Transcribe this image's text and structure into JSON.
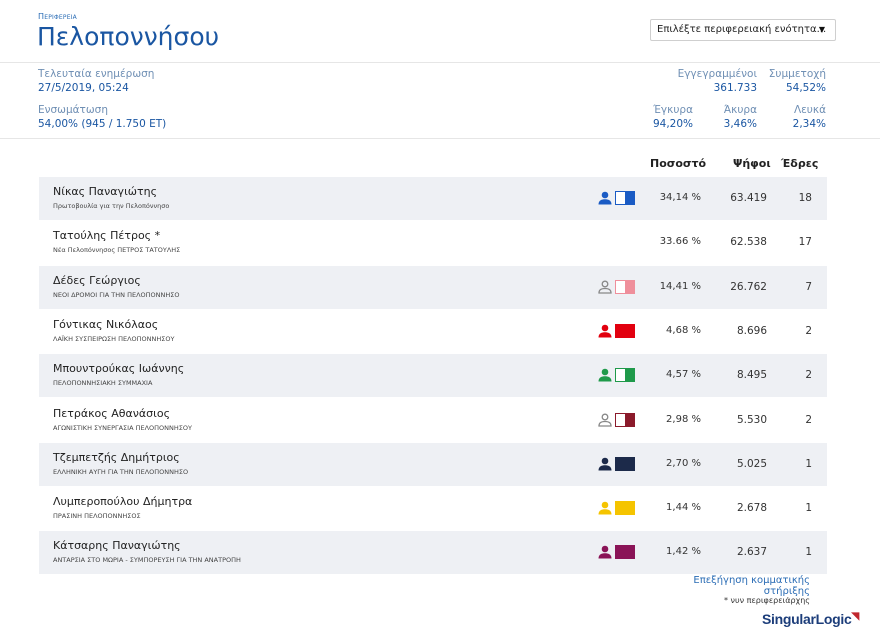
{
  "header": {
    "kicker": "Περιφερεια",
    "title": "Πελοποννήσου",
    "select_value": "Επιλέξτε περιφερειακή ενότητα...",
    "select_caret": "▼"
  },
  "stats": {
    "last_update_label": "Τελευταία ενημέρωση",
    "last_update_value": "27/5/2019, 05:24",
    "integration_label": "Ενσωμάτωση",
    "integration_value": "54,00% (945 / 1.750 ΕΤ)",
    "registered_label": "Εγγεγραμμένοι",
    "registered_value": "361.733",
    "turnout_label": "Συμμετοχή",
    "turnout_value": "54,52%",
    "valid_label": "Έγκυρα",
    "valid_value": "94,20%",
    "invalid_label": "Άκυρα",
    "invalid_value": "3,46%",
    "blank_label": "Λευκά",
    "blank_value": "2,34%"
  },
  "table": {
    "col_percent": "Ποσοστό",
    "col_votes": "Ψήφοι",
    "col_seats": "Έδρες",
    "rows": [
      {
        "name": "Νίκας Παναγιώτης",
        "party": "Πρωτοβουλία για την Πελοπόννησο",
        "percent": "34,14 %",
        "votes": "63.419",
        "seats": "18",
        "color": "#1a5bc4",
        "swatch_fill": 0.5,
        "person_icon": "person-filled-icon"
      },
      {
        "name": "Τατούλης Πέτρος *",
        "party": "Νέα Πελοπόννησος ΠΕΤΡΟΣ ΤΑΤΟΥΛΗΣ",
        "percent": "33.66 %",
        "votes": "62.538",
        "seats": "17",
        "color": "",
        "swatch_fill": 0,
        "person_icon": ""
      },
      {
        "name": "Δέδες Γεώργιος",
        "party": "ΝΕΟΙ ΔΡΟΜΟΙ ΓΙΑ ΤΗΝ ΠΕΛΟΠΟΝΝΗΣΟ",
        "percent": "14,41 %",
        "votes": "26.762",
        "seats": "7",
        "color": "#ef8f9b",
        "swatch_fill": 0.5,
        "person_icon": "person-outline-icon"
      },
      {
        "name": "Γόντικας Νικόλαος",
        "party": "ΛΑΪΚΗ ΣΥΣΠΕΙΡΩΣΗ ΠΕΛΟΠΟΝΝΗΣΟΥ",
        "percent": "4,68 %",
        "votes": "8.696",
        "seats": "2",
        "color": "#e2000f",
        "swatch_fill": 1,
        "person_icon": "person-filled-icon"
      },
      {
        "name": "Μπουντρούκας Ιωάννης",
        "party": "ΠΕΛΟΠΟΝΝΗΣΙΑΚΗ ΣΥΜΜΑΧΙΑ",
        "percent": "4,57 %",
        "votes": "8.495",
        "seats": "2",
        "color": "#1f9a4a",
        "swatch_fill": 0.5,
        "person_icon": "person-filled-icon"
      },
      {
        "name": "Πετράκος Αθανάσιος",
        "party": "ΑΓΩΝΙΣΤΙΚΗ ΣΥΝΕΡΓΑΣΙΑ ΠΕΛΟΠΟΝΝΗΣΟΥ",
        "percent": "2,98 %",
        "votes": "5.530",
        "seats": "2",
        "color": "#8b1a2b",
        "swatch_fill": 0.5,
        "person_icon": "person-outline-icon"
      },
      {
        "name": "Τζεμπετζής Δημήτριος",
        "party": "ΕΛΛΗΝΙΚΗ ΑΥΓΗ ΓΙΑ ΤΗΝ ΠΕΛΟΠΟΝΝΗΣΟ",
        "percent": "2,70 %",
        "votes": "5.025",
        "seats": "1",
        "color": "#1c2a4a",
        "swatch_fill": 1,
        "person_icon": "person-filled-icon"
      },
      {
        "name": "Λυμπεροπούλου Δήμητρα",
        "party": "ΠΡΑΣΙΝΗ ΠΕΛΟΠΟΝΝΗΣΟΣ",
        "percent": "1,44 %",
        "votes": "2.678",
        "seats": "1",
        "color": "#f5c400",
        "swatch_fill": 1,
        "person_icon": "person-filled-icon"
      },
      {
        "name": "Κάτσαρης Παναγιώτης",
        "party": "ΑΝΤΑΡΣΙΑ ΣΤΟ ΜΩΡΙΑ - ΣΥΜΠΟΡΕΥΣΗ ΓΙΑ ΤΗΝ ΑΝΑΤΡΟΠΗ",
        "percent": "1,42 %",
        "votes": "2.637",
        "seats": "1",
        "color": "#8a1457",
        "swatch_fill": 1,
        "person_icon": "person-filled-icon"
      }
    ]
  },
  "footer": {
    "explain_link": "Επεξήγηση κομματικής στήριξης",
    "footnote": "* νυν περιφερειάρχης",
    "logo_singular": "Singular",
    "logo_logic": "Logic"
  }
}
